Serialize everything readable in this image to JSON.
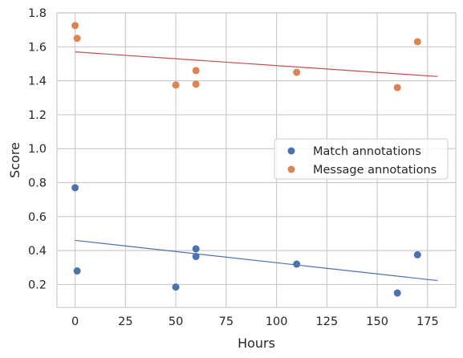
{
  "chart_data": {
    "type": "scatter",
    "title": "",
    "xlabel": "Hours",
    "ylabel": "Score",
    "xlim": [
      -9,
      189
    ],
    "ylim": [
      0.065,
      1.8
    ],
    "x_ticks": [
      0,
      25,
      50,
      75,
      100,
      125,
      150,
      175
    ],
    "y_ticks": [
      0.2,
      0.4,
      0.6,
      0.8,
      1.0,
      1.2,
      1.4,
      1.6,
      1.8
    ],
    "y_tick_labels": [
      "0.2",
      "0.4",
      "0.6",
      "0.8",
      "1.0",
      "1.2",
      "1.4",
      "1.6",
      "1.8"
    ],
    "grid": true,
    "legend_position": "center-right",
    "series": [
      {
        "name": "Match annotations",
        "color": "#4c72b0",
        "line_color": "#4c72b0",
        "x": [
          0,
          1,
          50,
          60,
          60,
          110,
          160,
          170
        ],
        "y": [
          0.77,
          0.28,
          0.185,
          0.41,
          0.365,
          0.32,
          0.15,
          0.375
        ],
        "fit": {
          "x": [
            0,
            180
          ],
          "y": [
            0.46,
            0.223
          ]
        }
      },
      {
        "name": "Message annotations",
        "color": "#dd8452",
        "line_color": "#c44e52",
        "x": [
          0,
          1,
          50,
          60,
          60,
          110,
          160,
          170
        ],
        "y": [
          1.725,
          1.65,
          1.375,
          1.46,
          1.38,
          1.45,
          1.36,
          1.63
        ],
        "fit": {
          "x": [
            0,
            180
          ],
          "y": [
            1.57,
            1.425
          ]
        }
      }
    ]
  }
}
